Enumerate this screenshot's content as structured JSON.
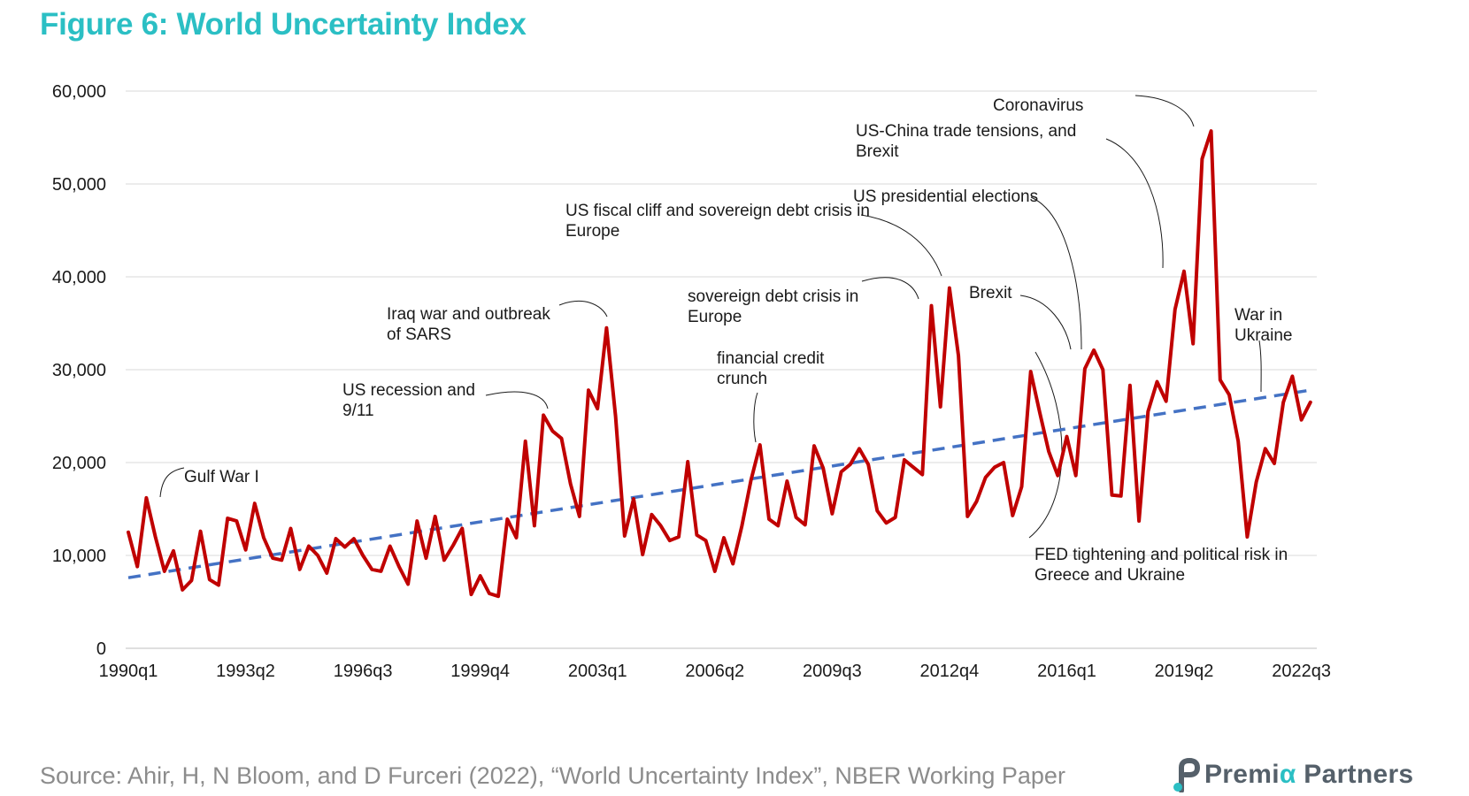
{
  "figure_title": "Figure 6: World Uncertainty Index",
  "source": "Source: Ahir, H, N Bloom, and D Furceri (2022), “World Uncertainty Index”, NBER Working Paper",
  "logo": {
    "prefix": "Premi",
    "alpha": "α",
    "suffix": " Partners",
    "icon": "premia-logo-icon",
    "accent": "#2bbfc4"
  },
  "chart_data": {
    "type": "line",
    "title": "",
    "xlabel": "",
    "ylabel": "",
    "ylim": [
      0,
      60000
    ],
    "y_ticks": [
      0,
      10000,
      20000,
      30000,
      40000,
      50000,
      60000
    ],
    "y_tick_labels": [
      "0",
      "10,000",
      "20,000",
      "30,000",
      "40,000",
      "50,000",
      "60,000"
    ],
    "x_start": "1990q1",
    "x_end": "2022q4",
    "x_tick_labels": [
      "1990q1",
      "1993q2",
      "1996q3",
      "1999q4",
      "2003q1",
      "2006q2",
      "2009q3",
      "2012q4",
      "2016q1",
      "2019q2",
      "2022q3"
    ],
    "grid": true,
    "series": [
      {
        "name": "",
        "color": "#c00000",
        "values": [
          12500,
          8800,
          16200,
          12000,
          8300,
          10500,
          6300,
          7300,
          12600,
          7400,
          6800,
          14000,
          13700,
          10600,
          15600,
          11900,
          9700,
          9500,
          12900,
          8500,
          11000,
          10000,
          8100,
          11800,
          10900,
          11800,
          10000,
          8500,
          8300,
          11000,
          8800,
          6900,
          13700,
          9700,
          14200,
          9500,
          11100,
          12900,
          5800,
          7800,
          5900,
          5600,
          13900,
          11900,
          22300,
          13200,
          25100,
          23400,
          22600,
          17700,
          14200,
          27800,
          25800,
          34500,
          25000,
          12100,
          16100,
          10100,
          14400,
          13200,
          11600,
          12000,
          20100,
          12200,
          11600,
          8300,
          11900,
          9100,
          13200,
          18100,
          21900,
          13900,
          13200,
          18000,
          14100,
          13300,
          21800,
          19400,
          14500,
          19000,
          19800,
          21500,
          19800,
          14800,
          13500,
          14100,
          20300,
          19500,
          18700,
          36900,
          26000,
          38800,
          31500,
          14200,
          15800,
          18400,
          19500,
          20000,
          14300,
          17400,
          29800,
          25400,
          21200,
          18600,
          22800,
          18600,
          30100,
          32100,
          30000,
          16500,
          16400,
          28300,
          13700,
          25500,
          28700,
          26600,
          36500,
          40600,
          32800,
          52700,
          55700,
          28900,
          27300,
          22300,
          12000,
          17900,
          21500,
          19900,
          26500,
          29300,
          24600,
          26500
        ]
      },
      {
        "name": "",
        "color": "#4472c4",
        "style": "dashed",
        "trend": true,
        "values": [
          7600,
          27800
        ]
      }
    ],
    "annotations": [
      {
        "lines": [
          "Gulf War I"
        ]
      },
      {
        "lines": [
          "US recession and",
          "9/11"
        ]
      },
      {
        "lines": [
          "Iraq war and outbreak",
          "of SARS"
        ]
      },
      {
        "lines": [
          "financial credit",
          "crunch"
        ]
      },
      {
        "lines": [
          "sovereign debt crisis in",
          "Europe"
        ]
      },
      {
        "lines": [
          "US fiscal cliff and sovereign debt crisis in",
          "Europe"
        ]
      },
      {
        "lines": [
          "US presidential elections"
        ]
      },
      {
        "lines": [
          "Brexit"
        ]
      },
      {
        "lines": [
          "FED tightening and political risk in",
          "Greece and Ukraine"
        ]
      },
      {
        "lines": [
          "US-China trade tensions, and",
          "Brexit"
        ]
      },
      {
        "lines": [
          "Coronavirus"
        ]
      },
      {
        "lines": [
          "War in",
          "Ukraine"
        ]
      }
    ]
  }
}
